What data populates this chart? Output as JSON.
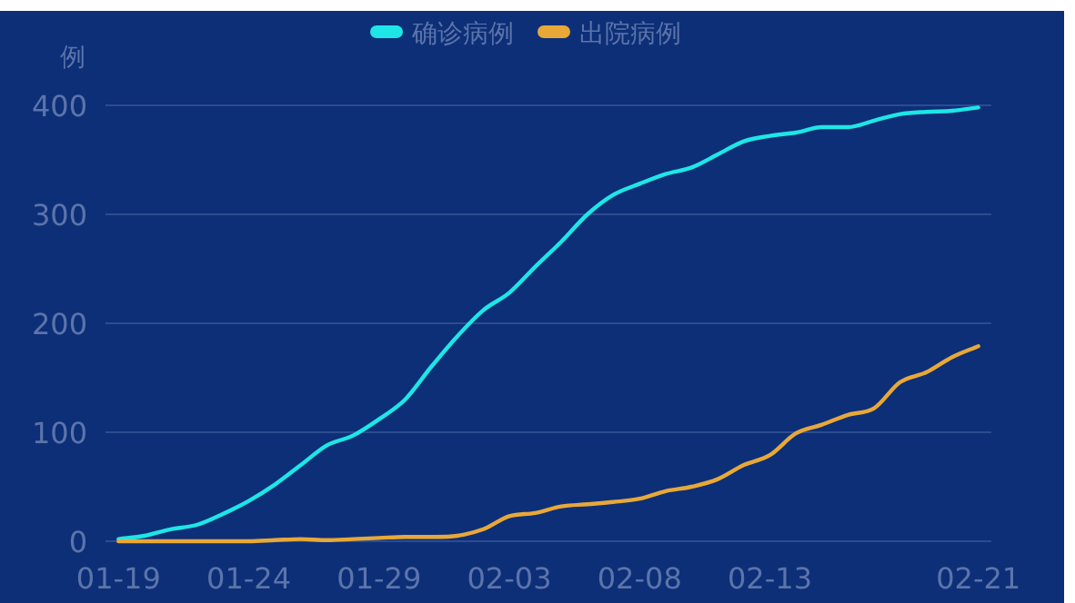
{
  "chart_data": {
    "type": "line",
    "ylabel": "例",
    "legend": "top",
    "grid": "y",
    "ylim": [
      0,
      400
    ],
    "yticks": [
      0,
      100,
      200,
      300,
      400
    ],
    "categories": [
      "01-19",
      null,
      null,
      null,
      null,
      "01-24",
      null,
      null,
      null,
      null,
      "01-29",
      null,
      null,
      null,
      null,
      "02-03",
      null,
      null,
      null,
      null,
      "02-08",
      null,
      null,
      null,
      null,
      "02-13",
      null,
      null,
      null,
      null,
      null,
      null,
      null,
      "02-21"
    ],
    "series": [
      {
        "name": "确诊病例",
        "color": "#1ee6e6",
        "values": [
          2,
          5,
          11,
          15,
          25,
          37,
          52,
          70,
          88,
          97,
          112,
          130,
          160,
          188,
          212,
          228,
          252,
          275,
          300,
          318,
          328,
          337,
          343,
          355,
          367,
          372,
          375,
          380,
          380,
          386,
          392,
          394,
          395,
          398
        ]
      },
      {
        "name": "出院病例",
        "color": "#e8a838",
        "values": [
          0,
          0,
          0,
          0,
          0,
          0,
          1,
          2,
          1,
          2,
          3,
          4,
          4,
          5,
          11,
          23,
          26,
          32,
          34,
          36,
          39,
          46,
          50,
          57,
          70,
          79,
          99,
          107,
          116,
          122,
          146,
          155,
          169,
          179
        ]
      }
    ]
  }
}
